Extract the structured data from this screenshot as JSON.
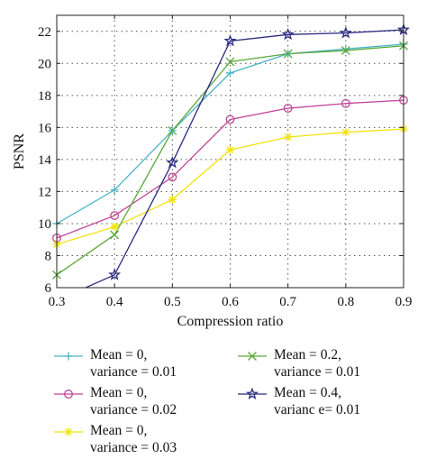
{
  "chart_data": {
    "type": "line",
    "xlabel": "Compression ratio",
    "ylabel": "PSNR",
    "xlim": [
      0.3,
      0.9
    ],
    "ylim": [
      6,
      23
    ],
    "xticks": [
      "0.3",
      "0.4",
      "0.5",
      "0.6",
      "0.7",
      "0.8",
      "0.9"
    ],
    "yticks": [
      "6",
      "8",
      "10",
      "12",
      "14",
      "16",
      "18",
      "20",
      "22"
    ],
    "grid": true,
    "legend_position": "bottom",
    "x": [
      0.3,
      0.4,
      0.5,
      0.6,
      0.7,
      0.8,
      0.9
    ],
    "series": [
      {
        "line1": "Mean = 0,",
        "line2": "variance = 0.01",
        "color": "#4ab3c8",
        "marker": "plus",
        "values": [
          10.0,
          12.1,
          15.8,
          19.4,
          20.6,
          20.9,
          21.2
        ]
      },
      {
        "line1": "Mean = 0,",
        "line2": "variance = 0.02",
        "color": "#c0459a",
        "marker": "circle",
        "values": [
          9.1,
          10.5,
          12.9,
          16.5,
          17.2,
          17.5,
          17.7
        ]
      },
      {
        "line1": "Mean = 0,",
        "line2": "variance = 0.03",
        "color": "#f2e30f",
        "marker": "asterisk",
        "values": [
          8.7,
          9.8,
          11.5,
          14.6,
          15.4,
          15.7,
          15.9
        ]
      },
      {
        "line1": "Mean = 0.2,",
        "line2": "variance = 0.01",
        "color": "#5aa83a",
        "marker": "cross",
        "values": [
          6.8,
          9.3,
          15.8,
          20.1,
          20.6,
          20.8,
          21.1
        ]
      },
      {
        "line1": "Mean = 0.4,",
        "line2": "varianc e= 0.01",
        "color": "#2b2a80",
        "marker": "star",
        "values": [
          5.2,
          6.8,
          13.8,
          21.4,
          21.8,
          21.9,
          22.1
        ]
      }
    ]
  }
}
